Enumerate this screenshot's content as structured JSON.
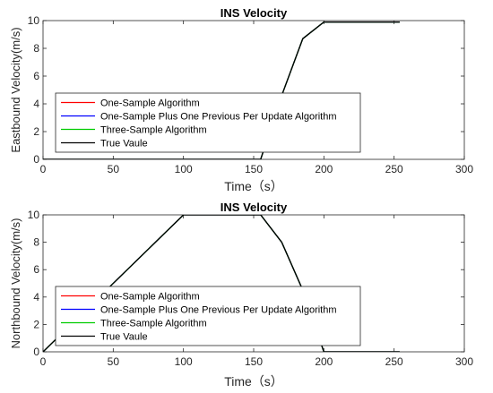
{
  "chart_data": [
    {
      "type": "line",
      "title": "INS Velocity",
      "xlabel": "Time（s）",
      "ylabel": "Eastbound Velocity(m/s)",
      "xlim": [
        0,
        300
      ],
      "ylim": [
        0,
        10
      ],
      "xticks": [
        0,
        50,
        100,
        150,
        200,
        250,
        300
      ],
      "yticks": [
        0,
        2,
        4,
        6,
        8,
        10
      ],
      "grid": false,
      "legend_position": "lower-left",
      "series": [
        {
          "name": "One-Sample Algorithm",
          "color": "#ff0000",
          "x": [
            0,
            155,
            170,
            185,
            200,
            254
          ],
          "y": [
            0,
            0,
            4.6,
            8.7,
            9.9,
            9.9
          ]
        },
        {
          "name": "One-Sample Plus One Previous Per Update Algorithm",
          "color": "#0000ff",
          "x": [
            0,
            155,
            170,
            185,
            200,
            254
          ],
          "y": [
            0,
            0,
            4.6,
            8.7,
            9.9,
            9.9
          ]
        },
        {
          "name": "Three-Sample Algorithm",
          "color": "#00cc00",
          "x": [
            0,
            155,
            170,
            185,
            200,
            254
          ],
          "y": [
            0,
            0,
            4.6,
            8.7,
            9.9,
            9.9
          ]
        },
        {
          "name": "True Vaule",
          "color": "#000000",
          "x": [
            0,
            155,
            170,
            185,
            200,
            254
          ],
          "y": [
            0,
            0,
            4.6,
            8.7,
            9.9,
            9.9
          ]
        }
      ]
    },
    {
      "type": "line",
      "title": "INS Velocity",
      "xlabel": "Time（s）",
      "ylabel": "Northbound Velocity(m/s)",
      "xlim": [
        0,
        300
      ],
      "ylim": [
        0,
        10
      ],
      "xticks": [
        0,
        50,
        100,
        150,
        200,
        250,
        300
      ],
      "yticks": [
        0,
        2,
        4,
        6,
        8,
        10
      ],
      "grid": false,
      "legend_position": "lower-left",
      "series": [
        {
          "name": "One-Sample Algorithm",
          "color": "#ff0000",
          "x": [
            0,
            100,
            155,
            170,
            185,
            200,
            254
          ],
          "y": [
            0,
            10,
            10,
            8.0,
            4.5,
            0,
            0
          ]
        },
        {
          "name": "One-Sample Plus One Previous Per Update Algorithm",
          "color": "#0000ff",
          "x": [
            0,
            100,
            155,
            170,
            185,
            200,
            254
          ],
          "y": [
            0,
            10,
            10,
            8.0,
            4.5,
            0,
            0
          ]
        },
        {
          "name": "Three-Sample Algorithm",
          "color": "#00cc00",
          "x": [
            0,
            100,
            155,
            170,
            185,
            200,
            254
          ],
          "y": [
            0,
            10,
            10,
            8.0,
            4.5,
            0,
            0
          ]
        },
        {
          "name": "True Vaule",
          "color": "#000000",
          "x": [
            0,
            100,
            155,
            170,
            185,
            200,
            254
          ],
          "y": [
            0,
            10,
            10,
            8.0,
            4.5,
            0,
            0
          ]
        }
      ]
    }
  ]
}
